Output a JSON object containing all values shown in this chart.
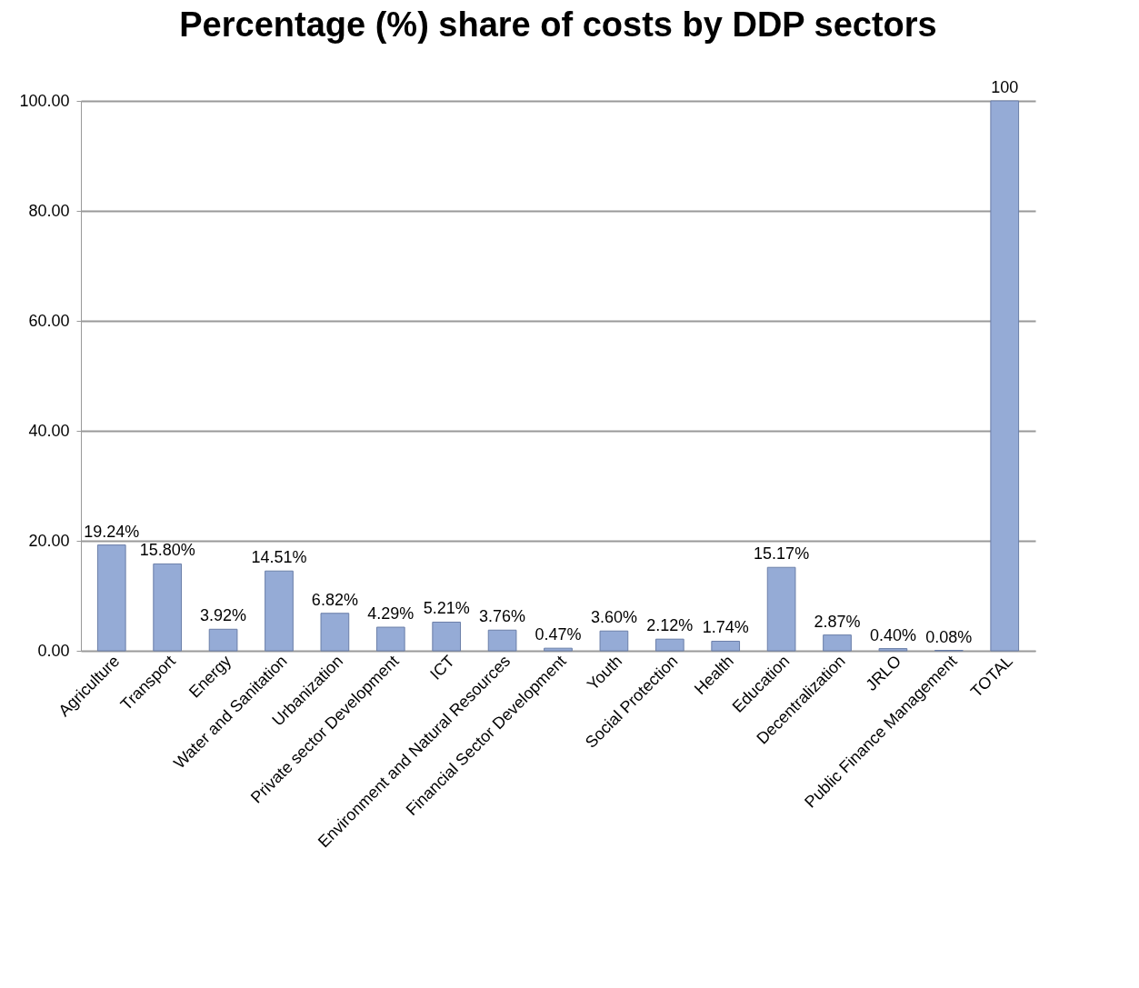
{
  "chart_data": {
    "type": "bar",
    "title": "Percentage (%) share of costs by DDP sectors",
    "categories": [
      "Agriculture",
      "Transport",
      "Energy",
      "Water and Sanitation",
      "Urbanization",
      "Private sector Development",
      "ICT",
      "Environment and Natural Resources",
      "Financial Sector Development",
      "Youth",
      "Social Protection",
      "Health",
      "Education",
      "Decentralization",
      "JRLO",
      "Public Finance Management",
      "TOTAL"
    ],
    "values": [
      19.24,
      15.8,
      3.92,
      14.51,
      6.82,
      4.29,
      5.21,
      3.76,
      0.47,
      3.6,
      2.12,
      1.74,
      15.17,
      2.87,
      0.4,
      0.08,
      100
    ],
    "value_labels": [
      "19.24%",
      "15.80%",
      "3.92%",
      "14.51%",
      "6.82%",
      "4.29%",
      "5.21%",
      "3.76%",
      "0.47%",
      "3.60%",
      "2.12%",
      "1.74%",
      "15.17%",
      "2.87%",
      "0.40%",
      "0.08%",
      "100"
    ],
    "color": "#95abd6",
    "ylim": [
      0,
      100
    ],
    "yticks": [
      {
        "value": 0,
        "label": "0.00"
      },
      {
        "value": 20,
        "label": "20.00"
      },
      {
        "value": 40,
        "label": "40.00"
      },
      {
        "value": 60,
        "label": "60.00"
      },
      {
        "value": 80,
        "label": "80.00"
      },
      {
        "value": 100,
        "label": "100.00"
      }
    ],
    "grid": "y"
  }
}
